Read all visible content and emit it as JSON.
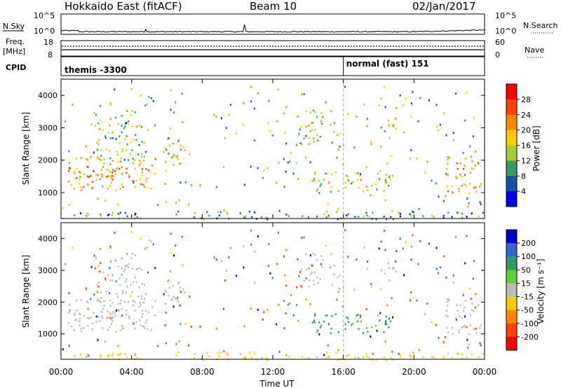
{
  "header": {
    "site": "Hokkaido East (fitACF)",
    "beam": "Beam 10",
    "date": "02/Jan/2017"
  },
  "noise_panel": {
    "left_label": "N.Sky",
    "right_label": "N.Search",
    "left_ticks": [
      "10^5",
      "10^0"
    ],
    "right_ticks": [
      "10^5",
      "10^0"
    ]
  },
  "freq_panel": {
    "left_label_1": "Freq.",
    "left_label_2": "[MHz]",
    "right_label": "Nave",
    "left_ticks": [
      "18",
      "8"
    ],
    "right_ticks": [
      "60",
      "0"
    ]
  },
  "cpid_panel": {
    "label": "CPID",
    "modes": [
      {
        "text": "themis -3300",
        "start_hour": 0
      },
      {
        "text": "normal (fast) 151",
        "start_hour": 16
      }
    ]
  },
  "time_axis": {
    "title": "Time UT",
    "tick_labels": [
      "00:00",
      "04:00",
      "08:00",
      "12:00",
      "16:00",
      "20:00",
      "00:00"
    ]
  },
  "power_panel": {
    "ylabel": "Slant Range [km]",
    "cbar_label": "Power [dB]",
    "cbar_ticks": [
      "28",
      "24",
      "20",
      "16",
      "12",
      "8",
      "4"
    ],
    "cbar_colors": [
      "#ff0000",
      "#ff4400",
      "#ff8800",
      "#ffcc00",
      "#aacc33",
      "#339966",
      "#1155aa",
      "#0000ff"
    ]
  },
  "velocity_panel": {
    "ylabel": "Slant Range [km]",
    "cbar_label": "Velocity [m s⁻¹]",
    "cbar_ticks": [
      "200",
      "100",
      "50",
      "15",
      "-15",
      "-50",
      "-100",
      "-200"
    ],
    "cbar_colors": [
      "#0000cc",
      "#3366cc",
      "#339966",
      "#66cc33",
      "#bbbbbb",
      "#ffcc00",
      "#ff8800",
      "#ff4400",
      "#ff0000"
    ],
    "ground_scatter_color": "#bbbbbb"
  },
  "chart_data": {
    "type": "heatmap",
    "x_unit": "hours UT",
    "xlim": [
      0,
      24
    ],
    "ylim": [
      200,
      4500
    ],
    "yticks": [
      1000,
      2000,
      3000,
      4000
    ],
    "regions": [
      {
        "x0": 0.3,
        "x1": 5.5,
        "y0": 1100,
        "y1": 2100,
        "power_db": 28,
        "velocity": 0,
        "gs": true
      },
      {
        "x0": 0.4,
        "x1": 3.2,
        "y0": 1400,
        "y1": 1800,
        "power_db": 30,
        "velocity": 0,
        "gs": true
      },
      {
        "x0": 5.8,
        "x1": 7.0,
        "y0": 1700,
        "y1": 2700,
        "power_db": 24,
        "velocity": 0,
        "gs": true
      },
      {
        "x0": 2.0,
        "x1": 5.0,
        "y0": 2000,
        "y1": 3200,
        "power_db": 20,
        "velocity": 0,
        "gs": true
      },
      {
        "x0": 3.2,
        "x1": 4.2,
        "y0": 3000,
        "y1": 3600,
        "power_db": 20,
        "velocity": 0,
        "gs": true
      },
      {
        "x0": 4.6,
        "x1": 5.4,
        "y0": 3700,
        "y1": 4000,
        "power_db": 14,
        "velocity": 0,
        "gs": true
      },
      {
        "x0": 13.5,
        "x1": 14.8,
        "y0": 2500,
        "y1": 3600,
        "power_db": 22,
        "velocity": 0,
        "gs": true
      },
      {
        "x0": 15.3,
        "x1": 16.0,
        "y0": 2400,
        "y1": 3200,
        "power_db": 22,
        "velocity": 0,
        "gs": true
      },
      {
        "x0": 18.1,
        "x1": 19.1,
        "y0": 2700,
        "y1": 3300,
        "power_db": 22,
        "velocity": 0,
        "gs": true
      },
      {
        "x0": 12.2,
        "x1": 13.4,
        "y0": 1850,
        "y1": 2100,
        "power_db": 16,
        "velocity": 40,
        "gs": false
      },
      {
        "x0": 14.2,
        "x1": 18.8,
        "y0": 1050,
        "y1": 1700,
        "power_db": 22,
        "velocity": 45,
        "gs": false
      },
      {
        "x0": 21.8,
        "x1": 23.8,
        "y0": 1000,
        "y1": 2200,
        "power_db": 26,
        "velocity": 0,
        "gs": true
      },
      {
        "x0": 0.0,
        "x1": 24.0,
        "y0": 200,
        "y1": 450,
        "power_db": 16,
        "velocity": -30,
        "gs": false
      }
    ]
  }
}
